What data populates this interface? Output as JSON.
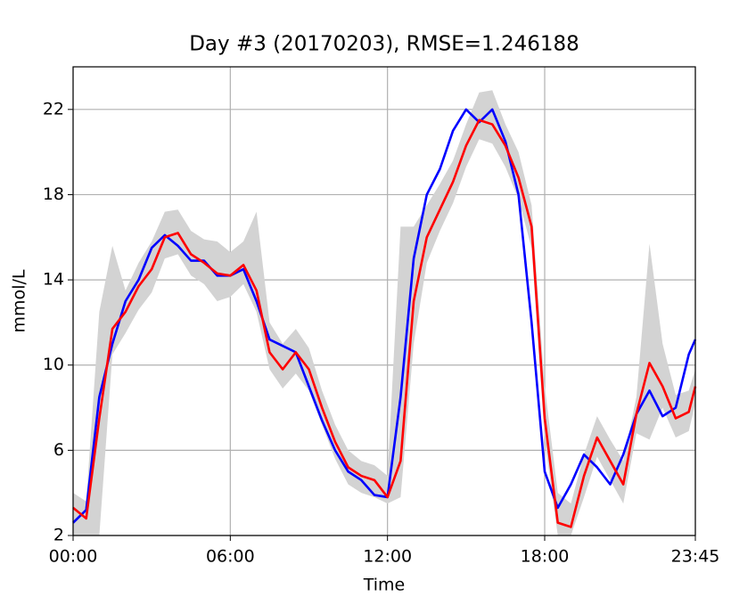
{
  "chart_data": {
    "type": "line",
    "title": "Day #3 (20170203), RMSE=1.246188",
    "title_color": "#ff0000",
    "xlabel": "Time",
    "ylabel": "mmol/L",
    "x": [
      0,
      0.5,
      1,
      1.5,
      2,
      2.5,
      3,
      3.5,
      4,
      4.5,
      5,
      5.5,
      6,
      6.5,
      7,
      7.5,
      8,
      8.5,
      9,
      9.5,
      10,
      10.5,
      11,
      11.5,
      12,
      12.5,
      13,
      13.5,
      14,
      14.5,
      15,
      15.5,
      16,
      16.5,
      17,
      17.5,
      18,
      18.5,
      19,
      19.5,
      20,
      20.5,
      21,
      21.5,
      22,
      22.5,
      23,
      23.5,
      23.75
    ],
    "xlim": [
      0,
      23.75
    ],
    "xticks": [
      {
        "value": 0,
        "label": "00:00"
      },
      {
        "value": 6,
        "label": "06:00"
      },
      {
        "value": 12,
        "label": "12:00"
      },
      {
        "value": 18,
        "label": "18:00"
      },
      {
        "value": 23.75,
        "label": "23:45"
      }
    ],
    "ylim": [
      2,
      24
    ],
    "yticks": [
      2,
      6,
      10,
      14,
      18,
      22
    ],
    "grid": true,
    "band": {
      "color": "#d3d3d3",
      "upper": [
        4.0,
        3.6,
        12.5,
        15.6,
        13.5,
        14.8,
        15.8,
        17.2,
        17.3,
        16.3,
        15.9,
        15.8,
        15.3,
        15.8,
        17.2,
        12.0,
        11.0,
        11.7,
        10.8,
        8.8,
        7.2,
        6.0,
        5.5,
        5.3,
        4.8,
        16.5,
        16.5,
        17.5,
        18.5,
        19.6,
        21.3,
        22.8,
        22.9,
        21.3,
        20.0,
        17.5,
        9.0,
        4.0,
        3.5,
        5.8,
        7.6,
        6.5,
        5.5,
        8.5,
        15.7,
        11.0,
        8.6,
        8.8,
        9.8
      ],
      "lower": [
        2.0,
        2.0,
        2.0,
        10.5,
        11.5,
        12.6,
        13.4,
        15.0,
        15.2,
        14.2,
        13.8,
        13.0,
        13.2,
        13.8,
        12.5,
        9.8,
        8.9,
        9.6,
        8.8,
        7.2,
        5.6,
        4.4,
        4.0,
        3.8,
        3.5,
        3.8,
        11.0,
        14.8,
        16.3,
        17.6,
        19.3,
        20.6,
        20.4,
        19.3,
        17.8,
        15.5,
        6.5,
        2.0,
        2.0,
        3.8,
        5.7,
        4.6,
        3.5,
        6.8,
        6.5,
        8.0,
        6.6,
        6.9,
        8.2
      ]
    },
    "series": [
      {
        "color": "#0000ff",
        "values": [
          2.6,
          3.2,
          8.5,
          11.0,
          13.0,
          14.0,
          15.5,
          16.1,
          15.6,
          14.9,
          14.9,
          14.2,
          14.2,
          14.5,
          13.0,
          11.2,
          10.9,
          10.6,
          9.0,
          7.4,
          6.0,
          5.0,
          4.6,
          3.9,
          3.8,
          8.5,
          15.0,
          18.0,
          19.2,
          21.0,
          22.0,
          21.4,
          22.0,
          20.5,
          18.0,
          12.0,
          5.0,
          3.3,
          4.4,
          5.8,
          5.2,
          4.4,
          5.8,
          7.7,
          8.8,
          7.6,
          8.0,
          10.5,
          11.2
        ]
      },
      {
        "color": "#ff0000",
        "values": [
          3.3,
          2.8,
          7.5,
          11.7,
          12.5,
          13.7,
          14.5,
          16.0,
          16.2,
          15.2,
          14.8,
          14.3,
          14.2,
          14.7,
          13.5,
          10.6,
          9.8,
          10.6,
          9.8,
          8.0,
          6.4,
          5.2,
          4.8,
          4.6,
          3.8,
          5.5,
          13.0,
          16.0,
          17.3,
          18.6,
          20.3,
          21.5,
          21.3,
          20.3,
          18.8,
          16.5,
          7.5,
          2.6,
          2.4,
          4.8,
          6.6,
          5.5,
          4.4,
          7.7,
          10.1,
          9.0,
          7.5,
          7.8,
          9.0
        ]
      }
    ]
  }
}
